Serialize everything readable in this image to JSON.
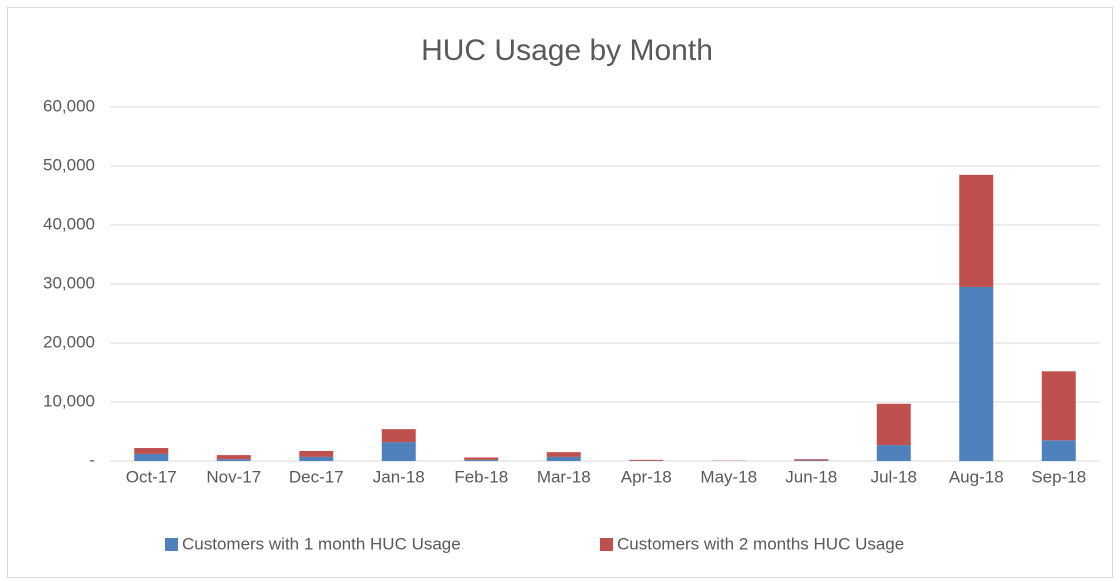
{
  "chart_data": {
    "type": "stacked_bar",
    "title": "HUC Usage by Month",
    "categories": [
      "Oct-17",
      "Nov-17",
      "Dec-17",
      "Jan-18",
      "Feb-18",
      "Mar-18",
      "Apr-18",
      "May-18",
      "Jun-18",
      "Jul-18",
      "Aug-18",
      "Sep-18"
    ],
    "series": [
      {
        "name": "Customers with 1 month HUC Usage",
        "color": "#4f81bd",
        "values": [
          1200,
          300,
          700,
          3200,
          200,
          700,
          50,
          0,
          100,
          2700,
          29500,
          3500
        ]
      },
      {
        "name": "Customers with 2 months HUC Usage",
        "color": "#c0504d",
        "values": [
          1000,
          700,
          1000,
          2200,
          400,
          800,
          150,
          50,
          200,
          7000,
          19000,
          11700
        ]
      }
    ],
    "ylim": [
      0,
      60000
    ],
    "yticks": [
      {
        "value": 0,
        "label": "-"
      },
      {
        "value": 10000,
        "label": "10,000"
      },
      {
        "value": 20000,
        "label": "20,000"
      },
      {
        "value": 30000,
        "label": "30,000"
      },
      {
        "value": 40000,
        "label": "40,000"
      },
      {
        "value": 50000,
        "label": "50,000"
      },
      {
        "value": 60000,
        "label": "60,000"
      }
    ],
    "grid": true,
    "legend": "bottom"
  }
}
